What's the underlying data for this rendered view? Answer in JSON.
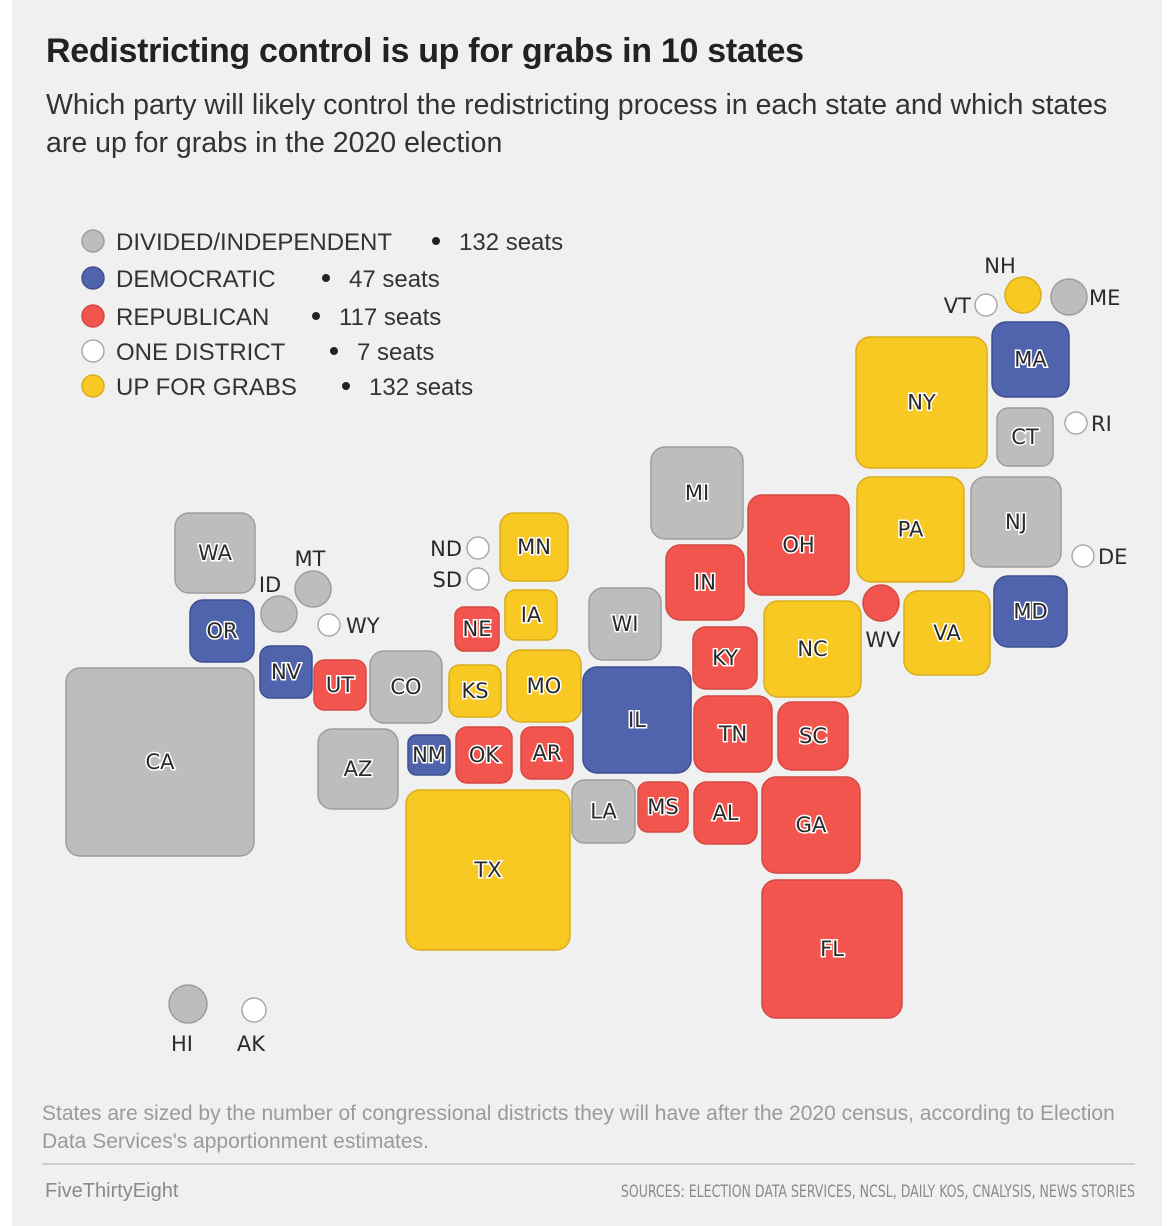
{
  "title": "Redistricting control is up for grabs in 10 states",
  "subtitle": "Which party will likely control the redistricting process in each state and which states are up for grabs in the 2020 election",
  "note": "States are sized by the number of congressional districts they will have after the 2020 census, according to Election Data Services's apportionment estimates.",
  "footer": {
    "brand": "FiveThirtyEight",
    "sources": "SOURCES: ELECTION DATA SERVICES, NCSL, DAILY KOS, CNALYSIS, NEWS STORIES"
  },
  "chart_data": {
    "type": "tile-map",
    "legend": [
      {
        "key": "divided",
        "label": "DIVIDED/INDEPENDENT",
        "seats": "132 seats",
        "color": "#bdbdbd"
      },
      {
        "key": "dem",
        "label": "DEMOCRATIC",
        "seats": "47 seats",
        "color": "#5063ad"
      },
      {
        "key": "rep",
        "label": "REPUBLICAN",
        "seats": "117 seats",
        "color": "#f2554e"
      },
      {
        "key": "one",
        "label": "ONE DISTRICT",
        "seats": "7 seats",
        "color": "#ffffff"
      },
      {
        "key": "grabs",
        "label": "UP FOR GRABS",
        "seats": "132 seats",
        "color": "#f9c923"
      }
    ],
    "states": [
      {
        "abbr": "WA",
        "status": "divided"
      },
      {
        "abbr": "OR",
        "status": "dem"
      },
      {
        "abbr": "ID",
        "status": "divided"
      },
      {
        "abbr": "MT",
        "status": "divided"
      },
      {
        "abbr": "WY",
        "status": "one"
      },
      {
        "abbr": "NV",
        "status": "dem"
      },
      {
        "abbr": "UT",
        "status": "rep"
      },
      {
        "abbr": "CO",
        "status": "divided"
      },
      {
        "abbr": "CA",
        "status": "divided"
      },
      {
        "abbr": "AZ",
        "status": "divided"
      },
      {
        "abbr": "NM",
        "status": "dem"
      },
      {
        "abbr": "TX",
        "status": "grabs"
      },
      {
        "abbr": "ND",
        "status": "one"
      },
      {
        "abbr": "SD",
        "status": "one"
      },
      {
        "abbr": "MN",
        "status": "grabs"
      },
      {
        "abbr": "IA",
        "status": "grabs"
      },
      {
        "abbr": "NE",
        "status": "rep"
      },
      {
        "abbr": "KS",
        "status": "grabs"
      },
      {
        "abbr": "MO",
        "status": "grabs"
      },
      {
        "abbr": "OK",
        "status": "rep"
      },
      {
        "abbr": "AR",
        "status": "rep"
      },
      {
        "abbr": "LA",
        "status": "divided"
      },
      {
        "abbr": "MS",
        "status": "rep"
      },
      {
        "abbr": "WI",
        "status": "divided"
      },
      {
        "abbr": "IL",
        "status": "dem"
      },
      {
        "abbr": "MI",
        "status": "divided"
      },
      {
        "abbr": "IN",
        "status": "rep"
      },
      {
        "abbr": "KY",
        "status": "rep"
      },
      {
        "abbr": "TN",
        "status": "rep"
      },
      {
        "abbr": "AL",
        "status": "rep"
      },
      {
        "abbr": "OH",
        "status": "rep"
      },
      {
        "abbr": "NC",
        "status": "grabs"
      },
      {
        "abbr": "SC",
        "status": "rep"
      },
      {
        "abbr": "GA",
        "status": "rep"
      },
      {
        "abbr": "FL",
        "status": "rep"
      },
      {
        "abbr": "WV",
        "status": "rep"
      },
      {
        "abbr": "VA",
        "status": "grabs"
      },
      {
        "abbr": "PA",
        "status": "grabs"
      },
      {
        "abbr": "NY",
        "status": "grabs"
      },
      {
        "abbr": "NJ",
        "status": "divided"
      },
      {
        "abbr": "MD",
        "status": "dem"
      },
      {
        "abbr": "CT",
        "status": "divided"
      },
      {
        "abbr": "RI",
        "status": "one"
      },
      {
        "abbr": "MA",
        "status": "dem"
      },
      {
        "abbr": "VT",
        "status": "one"
      },
      {
        "abbr": "NH",
        "status": "grabs"
      },
      {
        "abbr": "ME",
        "status": "divided"
      },
      {
        "abbr": "DE",
        "status": "one"
      },
      {
        "abbr": "HI",
        "status": "divided"
      },
      {
        "abbr": "AK",
        "status": "one"
      }
    ]
  }
}
